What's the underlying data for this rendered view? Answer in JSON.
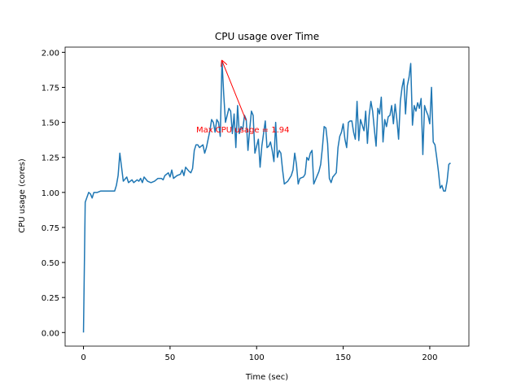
{
  "chart_data": {
    "type": "line",
    "title": "CPU usage over Time",
    "x_label": "Time (sec)",
    "y_label": "CPU usage (cores)",
    "x": [
      0,
      1,
      3,
      4,
      5,
      6,
      8,
      10,
      12,
      14,
      18,
      19,
      20,
      21,
      22,
      23,
      25,
      26,
      28,
      29,
      31,
      32,
      33,
      34,
      35,
      37,
      39,
      41,
      43,
      45,
      46,
      47,
      49,
      50,
      51,
      52,
      54,
      56,
      57,
      58,
      59,
      61,
      62,
      63,
      64,
      65,
      66,
      67,
      69,
      70,
      71,
      73,
      74,
      75,
      76,
      77,
      78,
      79,
      80,
      81,
      82,
      83,
      84,
      85,
      86,
      87,
      88,
      89,
      90,
      91,
      92,
      93,
      94,
      95,
      96,
      97,
      98,
      99,
      100,
      101,
      102,
      103,
      104,
      105,
      106,
      107,
      108,
      109,
      110,
      111,
      112,
      113,
      114,
      115,
      116,
      118,
      120,
      121,
      122,
      123,
      124,
      125,
      127,
      128,
      129,
      130,
      131,
      132,
      133,
      134,
      136,
      137,
      138,
      139,
      140,
      141,
      142,
      143,
      144,
      146,
      147,
      148,
      149,
      150,
      151,
      152,
      153,
      154,
      155,
      156,
      157,
      158,
      159,
      160,
      161,
      162,
      163,
      164,
      165,
      166,
      167,
      168,
      169,
      170,
      171,
      172,
      173,
      174,
      175,
      176,
      177,
      178,
      179,
      180,
      181,
      182,
      183,
      184,
      185,
      186,
      187,
      188,
      189,
      190,
      191,
      192,
      193,
      194,
      195,
      196,
      197,
      198,
      199,
      200,
      201,
      202,
      203,
      204,
      205,
      206,
      207,
      208,
      209,
      210,
      211,
      212
    ],
    "series": [
      {
        "name": "CPU usage",
        "color": "#1f77b4",
        "values": [
          0.0,
          0.93,
          1.0,
          0.99,
          0.96,
          1.0,
          1.0,
          1.01,
          1.01,
          1.01,
          1.01,
          1.05,
          1.12,
          1.28,
          1.18,
          1.08,
          1.11,
          1.07,
          1.09,
          1.07,
          1.09,
          1.08,
          1.1,
          1.07,
          1.11,
          1.08,
          1.07,
          1.08,
          1.1,
          1.1,
          1.09,
          1.12,
          1.14,
          1.11,
          1.16,
          1.1,
          1.12,
          1.13,
          1.16,
          1.12,
          1.18,
          1.15,
          1.14,
          1.17,
          1.3,
          1.34,
          1.34,
          1.32,
          1.34,
          1.28,
          1.32,
          1.44,
          1.52,
          1.5,
          1.43,
          1.52,
          1.5,
          1.4,
          1.94,
          1.7,
          1.5,
          1.55,
          1.6,
          1.58,
          1.42,
          1.56,
          1.32,
          1.62,
          1.42,
          1.47,
          1.45,
          1.55,
          1.52,
          1.3,
          1.45,
          1.58,
          1.55,
          1.28,
          1.33,
          1.38,
          1.18,
          1.33,
          1.42,
          1.51,
          1.32,
          1.33,
          1.36,
          1.3,
          1.22,
          1.5,
          1.25,
          1.3,
          1.28,
          1.16,
          1.06,
          1.08,
          1.12,
          1.16,
          1.28,
          1.2,
          1.06,
          1.1,
          1.11,
          1.13,
          1.25,
          1.23,
          1.28,
          1.3,
          1.06,
          1.09,
          1.15,
          1.2,
          1.32,
          1.47,
          1.46,
          1.35,
          1.1,
          1.07,
          1.11,
          1.14,
          1.32,
          1.4,
          1.43,
          1.49,
          1.38,
          1.32,
          1.5,
          1.51,
          1.51,
          1.43,
          1.38,
          1.65,
          1.37,
          1.52,
          1.48,
          1.44,
          1.58,
          1.35,
          1.55,
          1.65,
          1.58,
          1.45,
          1.33,
          1.6,
          1.56,
          1.68,
          1.36,
          1.52,
          1.47,
          1.54,
          1.55,
          1.62,
          1.49,
          1.63,
          1.52,
          1.38,
          1.65,
          1.75,
          1.81,
          1.56,
          1.76,
          1.82,
          1.92,
          1.48,
          1.62,
          1.58,
          1.64,
          1.6,
          1.67,
          1.27,
          1.62,
          1.58,
          1.55,
          1.49,
          1.75,
          1.36,
          1.34,
          1.25,
          1.15,
          1.03,
          1.05,
          1.01,
          1.01,
          1.08,
          1.2,
          1.21
        ]
      }
    ],
    "annotation": {
      "text": "Max CPU usage = 1.94",
      "color": "#ff0000",
      "xy": [
        80,
        1.94
      ],
      "xytext": [
        92,
        1.45
      ]
    },
    "xlim": [
      -10.6,
      222.6
    ],
    "ylim": [
      -0.097,
      2.037
    ],
    "xticks": [
      0,
      50,
      100,
      150,
      200
    ],
    "yticks": [
      {
        "value": 0,
        "label": "0.00"
      },
      {
        "value": 0.25,
        "label": "0.25"
      },
      {
        "value": 0.5,
        "label": "0.50"
      },
      {
        "value": 0.75,
        "label": "0.75"
      },
      {
        "value": 1,
        "label": "1.00"
      },
      {
        "value": 1.25,
        "label": "1.25"
      },
      {
        "value": 1.5,
        "label": "1.50"
      },
      {
        "value": 1.75,
        "label": "1.75"
      },
      {
        "value": 2,
        "label": "2.00"
      }
    ],
    "grid": false
  }
}
